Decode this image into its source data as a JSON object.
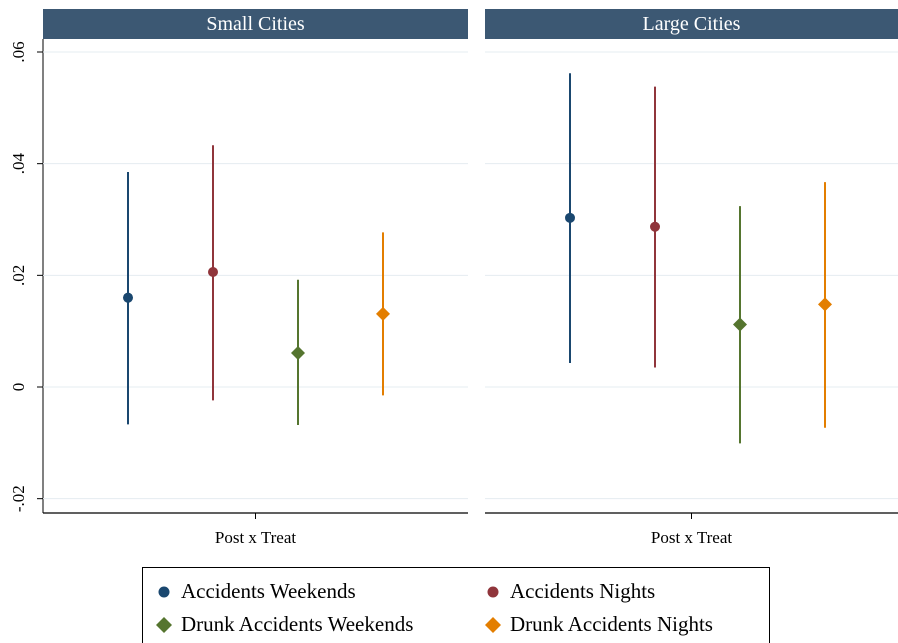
{
  "chart_data": {
    "type": "scatter",
    "subtype": "coefficient-plot-with-confidence-intervals",
    "x_axis_label": "Post x Treat",
    "ylim": [
      -0.025,
      0.065
    ],
    "yticks": [
      {
        "value": -0.02,
        "label": "-.02"
      },
      {
        "value": 0,
        "label": "0"
      },
      {
        "value": 0.02,
        "label": ".02"
      },
      {
        "value": 0.04,
        "label": ".04"
      },
      {
        "value": 0.06,
        "label": ".06"
      }
    ],
    "grid": true,
    "legend_position": "bottom",
    "series": [
      {
        "name": "Accidents Weekends",
        "marker": "circle",
        "color": "#1a476f"
      },
      {
        "name": "Accidents Nights",
        "marker": "circle",
        "color": "#90353b"
      },
      {
        "name": "Drunk Accidents Weekends",
        "marker": "diamond",
        "color": "#55752f"
      },
      {
        "name": "Drunk Accidents Nights",
        "marker": "diamond",
        "color": "#e37e00"
      }
    ],
    "panels": [
      {
        "title": "Small Cities",
        "points": [
          {
            "series": "Accidents Weekends",
            "estimate": 0.016,
            "ci_low": -0.0067,
            "ci_high": 0.0385
          },
          {
            "series": "Accidents Nights",
            "estimate": 0.0206,
            "ci_low": -0.0024,
            "ci_high": 0.0433
          },
          {
            "series": "Drunk Accidents Weekends",
            "estimate": 0.0061,
            "ci_low": -0.0068,
            "ci_high": 0.0192
          },
          {
            "series": "Drunk Accidents Nights",
            "estimate": 0.0131,
            "ci_low": -0.0015,
            "ci_high": 0.0277
          }
        ]
      },
      {
        "title": "Large Cities",
        "points": [
          {
            "series": "Accidents Weekends",
            "estimate": 0.0303,
            "ci_low": 0.0043,
            "ci_high": 0.0562
          },
          {
            "series": "Accidents Nights",
            "estimate": 0.0287,
            "ci_low": 0.0035,
            "ci_high": 0.0538
          },
          {
            "series": "Drunk Accidents Weekends",
            "estimate": 0.0112,
            "ci_low": -0.0101,
            "ci_high": 0.0324
          },
          {
            "series": "Drunk Accidents Nights",
            "estimate": 0.0148,
            "ci_low": -0.0073,
            "ci_high": 0.0367
          }
        ]
      }
    ]
  },
  "colors": {
    "panel_header_bg": "#3c5873",
    "panel_header_text": "#ffffff",
    "gridline": "#e5ecf1",
    "axis": "#000000"
  }
}
